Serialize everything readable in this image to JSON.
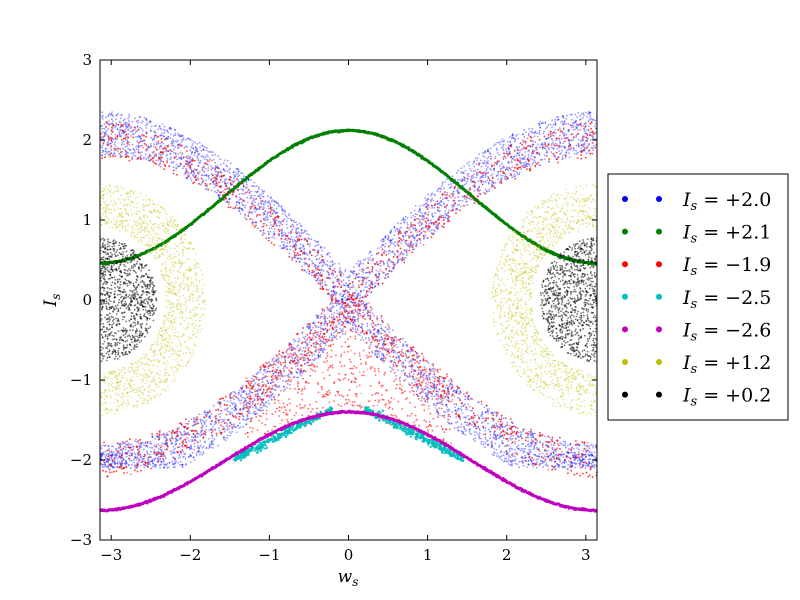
{
  "chart_data": {
    "type": "scatter",
    "title": "",
    "xlabel": "w_s",
    "ylabel": "I_s",
    "xlim": [
      -3.14159,
      3.14159
    ],
    "ylim": [
      -3,
      3
    ],
    "xticks": [
      "−3",
      "−2",
      "−1",
      "0",
      "1",
      "2",
      "3"
    ],
    "xtick_values": [
      -3,
      -2,
      -1,
      0,
      1,
      2,
      3
    ],
    "yticks": [
      "−3",
      "−2",
      "−1",
      "0",
      "1",
      "2",
      "3"
    ],
    "ytick_values": [
      -3,
      -2,
      -1,
      0,
      1,
      2,
      3
    ],
    "grid": false,
    "legend_placement": "outside-right",
    "series": [
      {
        "name": "I_s = +2.0",
        "color": "#0000ff",
        "kind": "chaotic-band"
      },
      {
        "name": "I_s = +2.1",
        "color": "#008000",
        "kind": "upper-rotation-curve",
        "values": {
          "max_y": 2.12,
          "min_y": 0.46
        }
      },
      {
        "name": "I_s = −1.9",
        "color": "#ff0000",
        "kind": "chaotic-band"
      },
      {
        "name": "I_s = −2.5",
        "color": "#00bfbf",
        "kind": "resonance-chain",
        "values": {
          "x_range": [
            -1.45,
            1.45
          ],
          "y_range": [
            -2.0,
            -1.3
          ]
        }
      },
      {
        "name": "I_s = −2.6",
        "color": "#bf00bf",
        "kind": "lower-rotation-curve",
        "values": {
          "max_y": -1.4,
          "min_y": -2.63
        }
      },
      {
        "name": "I_s = +1.2",
        "color": "#bfbf00",
        "kind": "libration-ring",
        "values": {
          "half_width_w": 1.45,
          "half_height_I": 1.45
        }
      },
      {
        "name": "I_s = +0.2",
        "color": "#000000",
        "kind": "libration-core",
        "values": {
          "half_width_w": 0.75,
          "half_height_I": 0.75
        }
      }
    ]
  },
  "legend": {
    "entries": [
      {
        "label": "I_s = +2.0",
        "lhs": "I",
        "sub": "s",
        "rhs": " = +2.0",
        "color": "#0000ff"
      },
      {
        "label": "I_s = +2.1",
        "lhs": "I",
        "sub": "s",
        "rhs": " = +2.1",
        "color": "#008000"
      },
      {
        "label": "I_s = −1.9",
        "lhs": "I",
        "sub": "s",
        "rhs": " = −1.9",
        "color": "#ff0000"
      },
      {
        "label": "I_s = −2.5",
        "lhs": "I",
        "sub": "s",
        "rhs": " = −2.5",
        "color": "#00bfbf"
      },
      {
        "label": "I_s = −2.6",
        "lhs": "I",
        "sub": "s",
        "rhs": " = −2.6",
        "color": "#bf00bf"
      },
      {
        "label": "I_s = +1.2",
        "lhs": "I",
        "sub": "s",
        "rhs": " = +1.2",
        "color": "#bfbf00"
      },
      {
        "label": "I_s = +0.2",
        "lhs": "I",
        "sub": "s",
        "rhs": " = +0.2",
        "color": "#000000"
      }
    ]
  },
  "axes": {
    "x_main": "w",
    "x_sub": "s",
    "y_main": "I",
    "y_sub": "s"
  }
}
